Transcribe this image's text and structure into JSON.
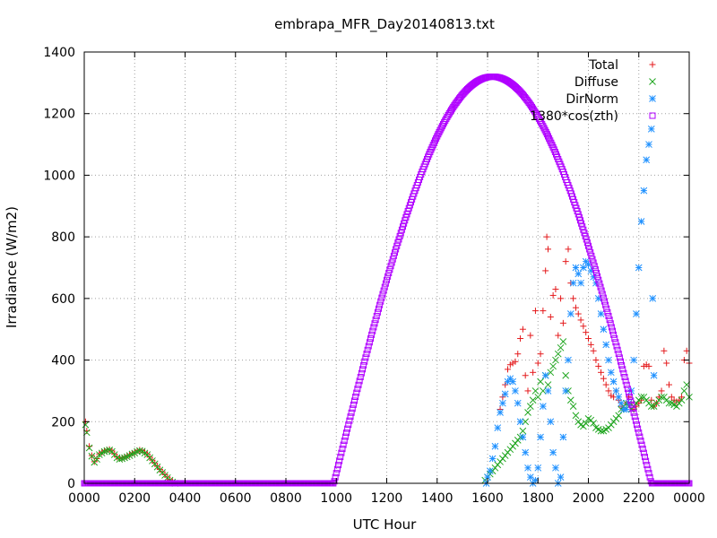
{
  "chart_data": {
    "type": "scatter",
    "title": "embrapa_MFR_Day20140813.txt",
    "xlabel": "UTC Hour",
    "ylabel": "Irradiance (W/m2)",
    "xlim": [
      0,
      24
    ],
    "ylim": [
      0,
      1400
    ],
    "x_ticks": [
      {
        "value": 0,
        "label": "0000"
      },
      {
        "value": 2,
        "label": "0200"
      },
      {
        "value": 4,
        "label": "0400"
      },
      {
        "value": 6,
        "label": "0600"
      },
      {
        "value": 8,
        "label": "0800"
      },
      {
        "value": 10,
        "label": "1000"
      },
      {
        "value": 12,
        "label": "1200"
      },
      {
        "value": 14,
        "label": "1400"
      },
      {
        "value": 16,
        "label": "1600"
      },
      {
        "value": 18,
        "label": "1800"
      },
      {
        "value": 20,
        "label": "2000"
      },
      {
        "value": 22,
        "label": "2200"
      },
      {
        "value": 24,
        "label": "0000"
      }
    ],
    "y_ticks": [
      {
        "value": 0,
        "label": "0"
      },
      {
        "value": 200,
        "label": "200"
      },
      {
        "value": 400,
        "label": "400"
      },
      {
        "value": 600,
        "label": "600"
      },
      {
        "value": 800,
        "label": "800"
      },
      {
        "value": 1000,
        "label": "1000"
      },
      {
        "value": 1200,
        "label": "1200"
      },
      {
        "value": 1400,
        "label": "1400"
      }
    ],
    "grid": true,
    "legend_position": "top-right",
    "series": [
      {
        "name": "Total",
        "marker": "plus",
        "color": "#e41a1c",
        "points": [
          [
            0.05,
            200
          ],
          [
            0.1,
            170
          ],
          [
            0.2,
            120
          ],
          [
            0.3,
            90
          ],
          [
            0.4,
            70
          ],
          [
            0.5,
            80
          ],
          [
            0.6,
            95
          ],
          [
            0.7,
            100
          ],
          [
            0.8,
            105
          ],
          [
            0.9,
            108
          ],
          [
            1.0,
            110
          ],
          [
            1.1,
            105
          ],
          [
            1.2,
            95
          ],
          [
            1.3,
            85
          ],
          [
            1.4,
            80
          ],
          [
            1.5,
            82
          ],
          [
            1.6,
            85
          ],
          [
            1.7,
            88
          ],
          [
            1.8,
            92
          ],
          [
            1.9,
            97
          ],
          [
            2.0,
            100
          ],
          [
            2.1,
            105
          ],
          [
            2.2,
            108
          ],
          [
            2.3,
            106
          ],
          [
            2.4,
            100
          ],
          [
            2.5,
            95
          ],
          [
            2.6,
            85
          ],
          [
            2.7,
            75
          ],
          [
            2.8,
            65
          ],
          [
            2.9,
            55
          ],
          [
            3.0,
            45
          ],
          [
            3.1,
            37
          ],
          [
            3.2,
            28
          ],
          [
            3.3,
            20
          ],
          [
            3.4,
            12
          ],
          [
            3.5,
            6
          ],
          [
            3.6,
            0
          ],
          [
            16.5,
            240
          ],
          [
            16.6,
            280
          ],
          [
            16.7,
            320
          ],
          [
            16.8,
            370
          ],
          [
            16.9,
            385
          ],
          [
            17.0,
            390
          ],
          [
            17.1,
            395
          ],
          [
            17.2,
            420
          ],
          [
            17.3,
            470
          ],
          [
            17.4,
            500
          ],
          [
            17.5,
            350
          ],
          [
            17.6,
            300
          ],
          [
            17.7,
            480
          ],
          [
            17.8,
            360
          ],
          [
            17.9,
            560
          ],
          [
            18.0,
            390
          ],
          [
            18.1,
            420
          ],
          [
            18.2,
            560
          ],
          [
            18.3,
            690
          ],
          [
            18.35,
            800
          ],
          [
            18.4,
            760
          ],
          [
            18.5,
            540
          ],
          [
            18.6,
            610
          ],
          [
            18.7,
            630
          ],
          [
            18.8,
            480
          ],
          [
            18.9,
            600
          ],
          [
            19.0,
            520
          ],
          [
            19.1,
            720
          ],
          [
            19.2,
            760
          ],
          [
            19.3,
            650
          ],
          [
            19.4,
            600
          ],
          [
            19.5,
            570
          ],
          [
            19.6,
            550
          ],
          [
            19.7,
            530
          ],
          [
            19.8,
            510
          ],
          [
            19.9,
            490
          ],
          [
            20.0,
            470
          ],
          [
            20.1,
            450
          ],
          [
            20.2,
            430
          ],
          [
            20.3,
            400
          ],
          [
            20.4,
            380
          ],
          [
            20.5,
            360
          ],
          [
            20.6,
            340
          ],
          [
            20.7,
            320
          ],
          [
            20.8,
            300
          ],
          [
            20.9,
            285
          ],
          [
            21.0,
            280
          ],
          [
            21.1,
            300
          ],
          [
            21.2,
            270
          ],
          [
            21.3,
            250
          ],
          [
            21.4,
            240
          ],
          [
            21.5,
            260
          ],
          [
            21.6,
            280
          ],
          [
            21.7,
            260
          ],
          [
            21.8,
            240
          ],
          [
            21.9,
            250
          ],
          [
            22.0,
            260
          ],
          [
            22.1,
            270
          ],
          [
            22.2,
            380
          ],
          [
            22.3,
            385
          ],
          [
            22.4,
            380
          ],
          [
            22.5,
            270
          ],
          [
            22.6,
            250
          ],
          [
            22.7,
            260
          ],
          [
            22.8,
            280
          ],
          [
            22.9,
            300
          ],
          [
            23.0,
            430
          ],
          [
            23.1,
            390
          ],
          [
            23.2,
            320
          ],
          [
            23.3,
            280
          ],
          [
            23.4,
            270
          ],
          [
            23.5,
            265
          ],
          [
            23.6,
            270
          ],
          [
            23.7,
            280
          ],
          [
            23.8,
            400
          ],
          [
            23.9,
            430
          ],
          [
            24.0,
            390
          ]
        ]
      },
      {
        "name": "Diffuse",
        "marker": "cross",
        "color": "#1fa51f",
        "points": [
          [
            0.05,
            190
          ],
          [
            0.1,
            165
          ],
          [
            0.2,
            115
          ],
          [
            0.3,
            88
          ],
          [
            0.4,
            68
          ],
          [
            0.5,
            78
          ],
          [
            0.6,
            93
          ],
          [
            0.7,
            98
          ],
          [
            0.8,
            103
          ],
          [
            0.9,
            106
          ],
          [
            1.0,
            108
          ],
          [
            1.1,
            103
          ],
          [
            1.2,
            93
          ],
          [
            1.3,
            83
          ],
          [
            1.4,
            78
          ],
          [
            1.5,
            80
          ],
          [
            1.6,
            83
          ],
          [
            1.7,
            86
          ],
          [
            1.8,
            90
          ],
          [
            1.9,
            95
          ],
          [
            2.0,
            98
          ],
          [
            2.1,
            103
          ],
          [
            2.2,
            106
          ],
          [
            2.3,
            104
          ],
          [
            2.4,
            98
          ],
          [
            2.5,
            93
          ],
          [
            2.6,
            83
          ],
          [
            2.7,
            73
          ],
          [
            2.8,
            63
          ],
          [
            2.9,
            53
          ],
          [
            3.0,
            43
          ],
          [
            3.1,
            35
          ],
          [
            3.2,
            26
          ],
          [
            3.3,
            18
          ],
          [
            3.4,
            10
          ],
          [
            3.5,
            4
          ],
          [
            3.6,
            0
          ],
          [
            15.9,
            10
          ],
          [
            16.0,
            20
          ],
          [
            16.1,
            30
          ],
          [
            16.2,
            40
          ],
          [
            16.3,
            50
          ],
          [
            16.4,
            60
          ],
          [
            16.5,
            70
          ],
          [
            16.6,
            80
          ],
          [
            16.7,
            90
          ],
          [
            16.8,
            100
          ],
          [
            16.9,
            110
          ],
          [
            17.0,
            120
          ],
          [
            17.1,
            130
          ],
          [
            17.2,
            140
          ],
          [
            17.3,
            150
          ],
          [
            17.4,
            170
          ],
          [
            17.5,
            200
          ],
          [
            17.6,
            230
          ],
          [
            17.7,
            250
          ],
          [
            17.8,
            270
          ],
          [
            17.9,
            300
          ],
          [
            18.0,
            280
          ],
          [
            18.1,
            330
          ],
          [
            18.2,
            300
          ],
          [
            18.3,
            350
          ],
          [
            18.4,
            320
          ],
          [
            18.5,
            360
          ],
          [
            18.6,
            380
          ],
          [
            18.7,
            400
          ],
          [
            18.8,
            420
          ],
          [
            18.9,
            440
          ],
          [
            19.0,
            460
          ],
          [
            19.1,
            350
          ],
          [
            19.2,
            300
          ],
          [
            19.3,
            270
          ],
          [
            19.4,
            250
          ],
          [
            19.5,
            220
          ],
          [
            19.6,
            200
          ],
          [
            19.7,
            190
          ],
          [
            19.8,
            185
          ],
          [
            19.9,
            195
          ],
          [
            20.0,
            210
          ],
          [
            20.1,
            205
          ],
          [
            20.2,
            195
          ],
          [
            20.3,
            180
          ],
          [
            20.4,
            175
          ],
          [
            20.5,
            170
          ],
          [
            20.6,
            170
          ],
          [
            20.7,
            175
          ],
          [
            20.8,
            180
          ],
          [
            20.9,
            190
          ],
          [
            21.0,
            200
          ],
          [
            21.1,
            210
          ],
          [
            21.2,
            220
          ],
          [
            21.3,
            240
          ],
          [
            21.4,
            250
          ],
          [
            21.5,
            260
          ],
          [
            21.6,
            250
          ],
          [
            21.7,
            240
          ],
          [
            21.8,
            250
          ],
          [
            21.9,
            260
          ],
          [
            22.0,
            270
          ],
          [
            22.1,
            280
          ],
          [
            22.2,
            280
          ],
          [
            22.3,
            270
          ],
          [
            22.4,
            260
          ],
          [
            22.5,
            250
          ],
          [
            22.6,
            250
          ],
          [
            22.7,
            260
          ],
          [
            22.8,
            270
          ],
          [
            22.9,
            280
          ],
          [
            23.0,
            280
          ],
          [
            23.1,
            270
          ],
          [
            23.2,
            260
          ],
          [
            23.3,
            260
          ],
          [
            23.4,
            255
          ],
          [
            23.5,
            250
          ],
          [
            23.6,
            260
          ],
          [
            23.7,
            270
          ],
          [
            23.8,
            300
          ],
          [
            23.9,
            320
          ],
          [
            24.0,
            280
          ]
        ]
      },
      {
        "name": "DirNorm",
        "marker": "star",
        "color": "#1e90ff",
        "points": [
          [
            15.95,
            0
          ],
          [
            16.0,
            20
          ],
          [
            16.1,
            40
          ],
          [
            16.2,
            80
          ],
          [
            16.3,
            120
          ],
          [
            16.4,
            180
          ],
          [
            16.5,
            230
          ],
          [
            16.6,
            260
          ],
          [
            16.7,
            290
          ],
          [
            16.8,
            330
          ],
          [
            16.9,
            340
          ],
          [
            17.0,
            330
          ],
          [
            17.1,
            300
          ],
          [
            17.2,
            260
          ],
          [
            17.3,
            200
          ],
          [
            17.4,
            150
          ],
          [
            17.5,
            100
          ],
          [
            17.6,
            50
          ],
          [
            17.7,
            20
          ],
          [
            17.8,
            0
          ],
          [
            17.9,
            10
          ],
          [
            18.0,
            50
          ],
          [
            18.1,
            150
          ],
          [
            18.2,
            250
          ],
          [
            18.3,
            350
          ],
          [
            18.4,
            300
          ],
          [
            18.5,
            200
          ],
          [
            18.6,
            100
          ],
          [
            18.7,
            50
          ],
          [
            18.8,
            0
          ],
          [
            18.9,
            20
          ],
          [
            19.0,
            150
          ],
          [
            19.1,
            300
          ],
          [
            19.2,
            400
          ],
          [
            19.3,
            550
          ],
          [
            19.4,
            650
          ],
          [
            19.5,
            700
          ],
          [
            19.6,
            680
          ],
          [
            19.7,
            650
          ],
          [
            19.8,
            700
          ],
          [
            19.9,
            720
          ],
          [
            20.0,
            710
          ],
          [
            20.1,
            690
          ],
          [
            20.2,
            670
          ],
          [
            20.3,
            650
          ],
          [
            20.4,
            600
          ],
          [
            20.5,
            550
          ],
          [
            20.6,
            500
          ],
          [
            20.7,
            450
          ],
          [
            20.8,
            400
          ],
          [
            20.9,
            360
          ],
          [
            21.0,
            330
          ],
          [
            21.1,
            300
          ],
          [
            21.2,
            280
          ],
          [
            21.3,
            260
          ],
          [
            21.4,
            240
          ],
          [
            21.5,
            240
          ],
          [
            21.6,
            260
          ],
          [
            21.7,
            300
          ],
          [
            21.8,
            400
          ],
          [
            21.9,
            550
          ],
          [
            22.0,
            700
          ],
          [
            22.1,
            850
          ],
          [
            22.2,
            950
          ],
          [
            22.3,
            1050
          ],
          [
            22.4,
            1100
          ],
          [
            22.5,
            1150
          ],
          [
            22.55,
            600
          ],
          [
            22.6,
            350
          ]
        ]
      },
      {
        "name": "1380*cos(zth)",
        "marker": "square",
        "color": "#b000ff",
        "curve": {
          "peak_x": 16.2,
          "peak_y": 1320,
          "half_width": 6.3,
          "x_start": 0,
          "x_end": 24,
          "step": 0.04
        }
      }
    ]
  }
}
